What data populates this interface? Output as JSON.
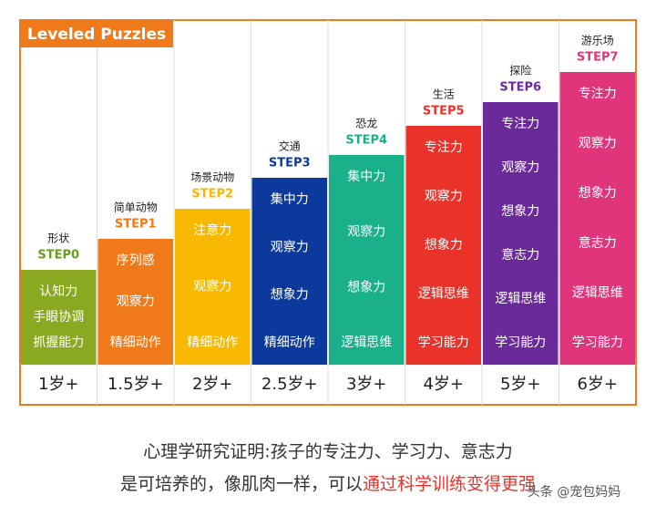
{
  "header": {
    "title": "Leveled Puzzles"
  },
  "columns": [
    {
      "title": "形状",
      "step": "STEP0",
      "skills": [
        "认知力",
        "手眼协调",
        "抓握能力"
      ],
      "age": "1岁+"
    },
    {
      "title": "简单动物",
      "step": "STEP1",
      "skills": [
        "序列感",
        "观察力",
        "精细动作"
      ],
      "age": "1.5岁+"
    },
    {
      "title": "场景动物",
      "step": "STEP2",
      "skills": [
        "注意力",
        "观察力",
        "精细动作"
      ],
      "age": "2岁+"
    },
    {
      "title": "交通",
      "step": "STEP3",
      "skills": [
        "集中力",
        "观察力",
        "想象力",
        "精细动作"
      ],
      "age": "2.5岁+"
    },
    {
      "title": "恐龙",
      "step": "STEP4",
      "skills": [
        "集中力",
        "观察力",
        "想象力",
        "逻辑思维"
      ],
      "age": "3岁+"
    },
    {
      "title": "生活",
      "step": "STEP5",
      "skills": [
        "专注力",
        "观察力",
        "想象力",
        "逻辑思维",
        "学习能力"
      ],
      "age": "4岁+"
    },
    {
      "title": "探险",
      "step": "STEP6",
      "skills": [
        "专注力",
        "观察力",
        "想象力",
        "意志力",
        "逻辑思维",
        "学习能力"
      ],
      "age": "5岁+"
    },
    {
      "title": "游乐场",
      "step": "STEP7",
      "skills": [
        "专注力",
        "观察力",
        "想象力",
        "意志力",
        "逻辑思维",
        "学习能力"
      ],
      "age": "6岁+"
    }
  ],
  "caption": {
    "line1": "心理学研究证明:孩子的专注力、学习力、意志力",
    "line2_plain": "是可培养的，像肌肉一样，可以",
    "line2_highlight": "通过科学训练变得更强"
  },
  "watermark": "头条 @宠包妈妈"
}
